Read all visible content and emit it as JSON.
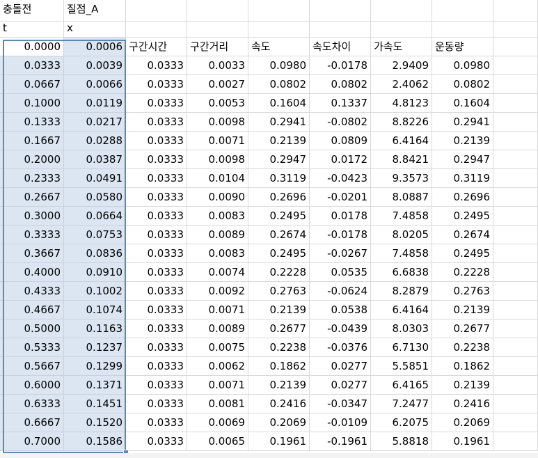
{
  "header_row1": [
    "충돌전",
    "질점_A",
    "",
    "",
    "",
    "",
    "",
    "",
    ""
  ],
  "header_row2": [
    "t",
    "x",
    "",
    "",
    "",
    "",
    "",
    "",
    ""
  ],
  "header_row3": [
    "0.0000",
    "0.0006",
    "구간시간",
    "구간거리",
    "속도",
    "속도차이",
    "가속도",
    "운동량",
    ""
  ],
  "rows": [
    [
      "0.0333",
      "0.0039",
      "0.0333",
      "0.0033",
      "0.0980",
      "-0.0178",
      "2.9409",
      "0.0980"
    ],
    [
      "0.0667",
      "0.0066",
      "0.0333",
      "0.0027",
      "0.0802",
      "0.0802",
      "2.4062",
      "0.0802"
    ],
    [
      "0.1000",
      "0.0119",
      "0.0333",
      "0.0053",
      "0.1604",
      "0.1337",
      "4.8123",
      "0.1604"
    ],
    [
      "0.1333",
      "0.0217",
      "0.0333",
      "0.0098",
      "0.2941",
      "-0.0802",
      "8.8226",
      "0.2941"
    ],
    [
      "0.1667",
      "0.0288",
      "0.0333",
      "0.0071",
      "0.2139",
      "0.0809",
      "6.4164",
      "0.2139"
    ],
    [
      "0.2000",
      "0.0387",
      "0.0333",
      "0.0098",
      "0.2947",
      "0.0172",
      "8.8421",
      "0.2947"
    ],
    [
      "0.2333",
      "0.0491",
      "0.0333",
      "0.0104",
      "0.3119",
      "-0.0423",
      "9.3573",
      "0.3119"
    ],
    [
      "0.2667",
      "0.0580",
      "0.0333",
      "0.0090",
      "0.2696",
      "-0.0201",
      "8.0887",
      "0.2696"
    ],
    [
      "0.3000",
      "0.0664",
      "0.0333",
      "0.0083",
      "0.2495",
      "0.0178",
      "7.4858",
      "0.2495"
    ],
    [
      "0.3333",
      "0.0753",
      "0.0333",
      "0.0089",
      "0.2674",
      "-0.0178",
      "8.0205",
      "0.2674"
    ],
    [
      "0.3667",
      "0.0836",
      "0.0333",
      "0.0083",
      "0.2495",
      "-0.0267",
      "7.4858",
      "0.2495"
    ],
    [
      "0.4000",
      "0.0910",
      "0.0333",
      "0.0074",
      "0.2228",
      "0.0535",
      "6.6838",
      "0.2228"
    ],
    [
      "0.4333",
      "0.1002",
      "0.0333",
      "0.0092",
      "0.2763",
      "-0.0624",
      "8.2879",
      "0.2763"
    ],
    [
      "0.4667",
      "0.1074",
      "0.0333",
      "0.0071",
      "0.2139",
      "0.0538",
      "6.4164",
      "0.2139"
    ],
    [
      "0.5000",
      "0.1163",
      "0.0333",
      "0.0089",
      "0.2677",
      "-0.0439",
      "8.0303",
      "0.2677"
    ],
    [
      "0.5333",
      "0.1237",
      "0.0333",
      "0.0075",
      "0.2238",
      "-0.0376",
      "6.7130",
      "0.2238"
    ],
    [
      "0.5667",
      "0.1299",
      "0.0333",
      "0.0062",
      "0.1862",
      "0.0277",
      "5.5851",
      "0.1862"
    ],
    [
      "0.6000",
      "0.1371",
      "0.0333",
      "0.0071",
      "0.2139",
      "0.0277",
      "6.4165",
      "0.2139"
    ],
    [
      "0.6333",
      "0.1451",
      "0.0333",
      "0.0081",
      "0.2416",
      "-0.0347",
      "7.2477",
      "0.2416"
    ],
    [
      "0.6667",
      "0.1520",
      "0.0333",
      "0.0069",
      "0.2069",
      "-0.0109",
      "6.2075",
      "0.2069"
    ],
    [
      "0.7000",
      "0.1586",
      "0.0333",
      "0.0065",
      "0.1961",
      "-0.1961",
      "5.8818",
      "0.1961"
    ]
  ]
}
